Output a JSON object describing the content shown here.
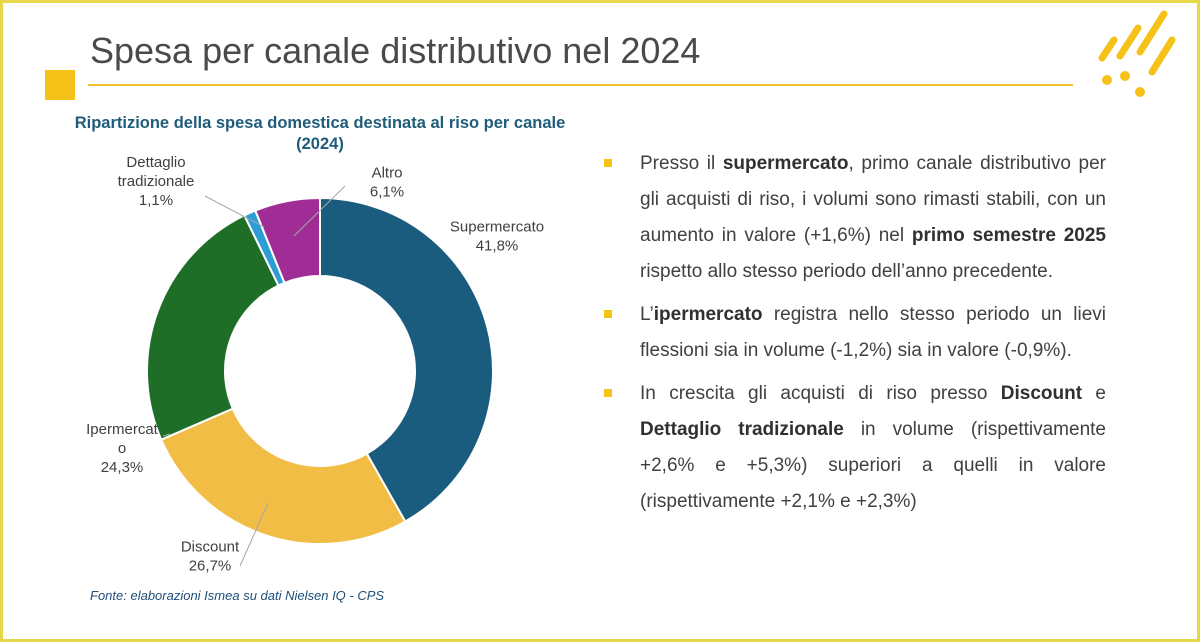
{
  "slide": {
    "title": "Spesa per canale distributivo nel 2024",
    "source": "Fonte: elaborazioni Ismea su dati Nielsen IQ - CPS",
    "accent_color": "#f5c21a",
    "border_color": "#e6d84a"
  },
  "chart_data": {
    "type": "pie",
    "variant": "donut",
    "title": "Ripartizione della spesa domestica destinata al riso per canale (2024)",
    "unit": "%",
    "slices": [
      {
        "label": "Supermercato",
        "value_label": "41,8%",
        "value": 41.8,
        "color": "#1a5c7e"
      },
      {
        "label": "Discount",
        "value_label": "26,7%",
        "value": 26.7,
        "color": "#f2bd44"
      },
      {
        "label": "Ipermercato",
        "value_label": "24,3%",
        "value": 24.3,
        "color": "#1f6e27"
      },
      {
        "label": "Dettaglio tradizionale",
        "value_label": "1,1%",
        "value": 1.1,
        "color": "#2e9dd6"
      },
      {
        "label": "Altro",
        "value_label": "6,1%",
        "value": 6.1,
        "color": "#a02d96"
      }
    ]
  },
  "bullets": [
    {
      "parts": [
        {
          "text": "Presso il ",
          "bold": false
        },
        {
          "text": "supermercato",
          "bold": true
        },
        {
          "text": ", primo canale distributivo per gli acquisti di riso, i volumi sono rimasti stabili, con un aumento in valore (+1,6%) nel ",
          "bold": false
        },
        {
          "text": "primo semestre 2025",
          "bold": true
        },
        {
          "text": " rispetto allo stesso periodo dell’anno precedente.",
          "bold": false
        }
      ]
    },
    {
      "parts": [
        {
          "text": "L’",
          "bold": false
        },
        {
          "text": "ipermercato",
          "bold": true
        },
        {
          "text": " registra nello stesso periodo un lievi flessioni sia in volume (-1,2%) sia in valore (-0,9%).",
          "bold": false
        }
      ]
    },
    {
      "parts": [
        {
          "text": "In crescita gli acquisti di riso presso ",
          "bold": false
        },
        {
          "text": "Discount",
          "bold": true
        },
        {
          "text": " e ",
          "bold": false
        },
        {
          "text": "Dettaglio tradizionale",
          "bold": true
        },
        {
          "text": " in volume (rispettivamente +2,6% e +5,3%) superiori a quelli in valore (rispettivamente +2,1% e +2,3%)",
          "bold": false
        }
      ]
    }
  ]
}
